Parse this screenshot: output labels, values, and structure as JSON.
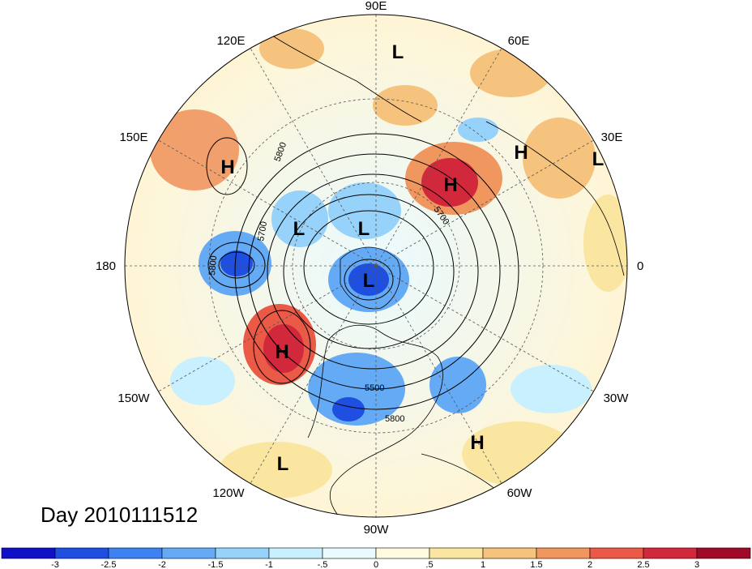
{
  "title": "Day 2010111512",
  "longitude_labels": [
    "90E",
    "60E",
    "30E",
    "0",
    "30W",
    "60W",
    "90W",
    "120W",
    "150W",
    "180",
    "150E",
    "120E"
  ],
  "pressure_centers": [
    {
      "type": "L",
      "lon": 80
    },
    {
      "type": "H",
      "lon": 25
    },
    {
      "type": "L",
      "lon": 15
    },
    {
      "type": "H",
      "lon": 45
    },
    {
      "type": "H",
      "lon": 145
    },
    {
      "type": "L",
      "lon": 125
    },
    {
      "type": "L",
      "lon": 90
    },
    {
      "type": "L",
      "lon": -90
    },
    {
      "type": "H",
      "lon": -155
    },
    {
      "type": "H",
      "lon": -50
    },
    {
      "type": "L",
      "lon": -120
    }
  ],
  "contour_labels": [
    "5800",
    "5700",
    "5800",
    "5700",
    "5500",
    "5800"
  ],
  "colorbar": {
    "labels": [
      "-3",
      "-2.5",
      "-2",
      "-1.5",
      "-1",
      "-.5",
      "0",
      ".5",
      "1",
      "1.5",
      "2",
      "2.5",
      "3"
    ],
    "colors": [
      "#1010c8",
      "#1e4fe0",
      "#3c82f0",
      "#64aaf5",
      "#96d2fa",
      "#c8f0ff",
      "#eafaff",
      "#fffae0",
      "#fae6a0",
      "#f5c37d",
      "#f0965f",
      "#eb5a46",
      "#d2283c",
      "#a00a28"
    ]
  }
}
